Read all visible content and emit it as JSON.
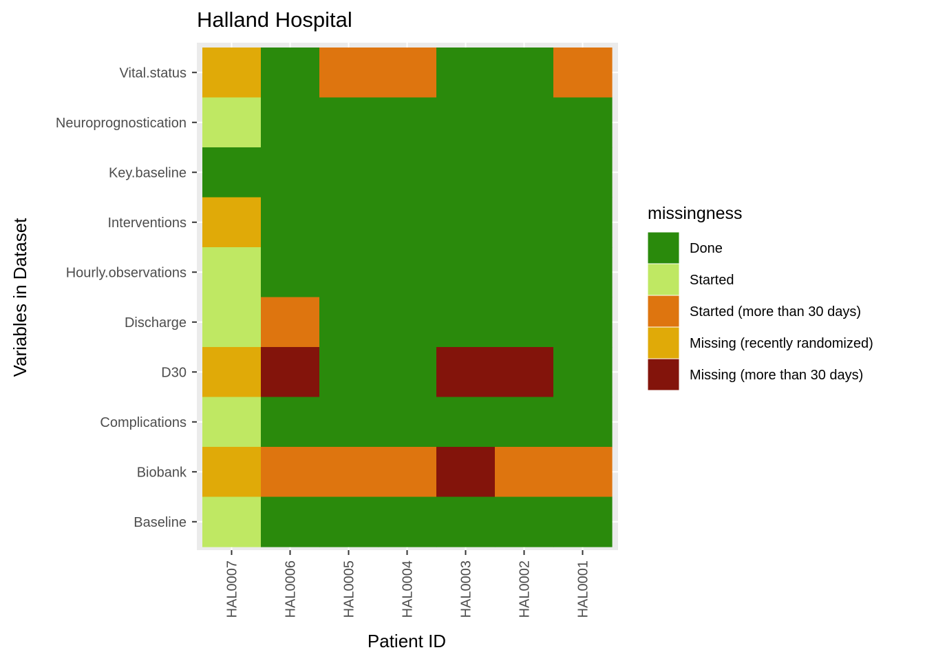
{
  "chart_data": {
    "type": "heatmap",
    "title": "Halland Hospital",
    "xlabel": "Patient ID",
    "ylabel": "Variables in Dataset",
    "x": [
      "HAL0007",
      "HAL0006",
      "HAL0005",
      "HAL0004",
      "HAL0003",
      "HAL0002",
      "HAL0001"
    ],
    "y": [
      "Vital.status",
      "Neuroprognostication",
      "Key.baseline",
      "Interventions",
      "Hourly.observations",
      "Discharge",
      "D30",
      "Complications",
      "Biobank",
      "Baseline"
    ],
    "legend": {
      "title": "missingness",
      "position": "right",
      "categories": [
        {
          "label": "Done",
          "color": "#2a8a0c"
        },
        {
          "label": "Started",
          "color": "#bfe863"
        },
        {
          "label": "Started (more than 30 days)",
          "color": "#de750f"
        },
        {
          "label": "Missing (recently randomized)",
          "color": "#e0aa08"
        },
        {
          "label": "Missing (more than 30 days)",
          "color": "#83140b"
        }
      ]
    },
    "values": [
      [
        "Missing (recently randomized)",
        "Done",
        "Started (more than 30 days)",
        "Started (more than 30 days)",
        "Done",
        "Done",
        "Started (more than 30 days)"
      ],
      [
        "Started",
        "Done",
        "Done",
        "Done",
        "Done",
        "Done",
        "Done"
      ],
      [
        "Done",
        "Done",
        "Done",
        "Done",
        "Done",
        "Done",
        "Done"
      ],
      [
        "Missing (recently randomized)",
        "Done",
        "Done",
        "Done",
        "Done",
        "Done",
        "Done"
      ],
      [
        "Started",
        "Done",
        "Done",
        "Done",
        "Done",
        "Done",
        "Done"
      ],
      [
        "Started",
        "Started (more than 30 days)",
        "Done",
        "Done",
        "Done",
        "Done",
        "Done"
      ],
      [
        "Missing (recently randomized)",
        "Missing (more than 30 days)",
        "Done",
        "Done",
        "Missing (more than 30 days)",
        "Missing (more than 30 days)",
        "Done"
      ],
      [
        "Started",
        "Done",
        "Done",
        "Done",
        "Done",
        "Done",
        "Done"
      ],
      [
        "Missing (recently randomized)",
        "Started (more than 30 days)",
        "Started (more than 30 days)",
        "Started (more than 30 days)",
        "Missing (more than 30 days)",
        "Started (more than 30 days)",
        "Started (more than 30 days)"
      ],
      [
        "Started",
        "Done",
        "Done",
        "Done",
        "Done",
        "Done",
        "Done"
      ]
    ],
    "panel_background": "#ebebeb",
    "grid": true
  }
}
